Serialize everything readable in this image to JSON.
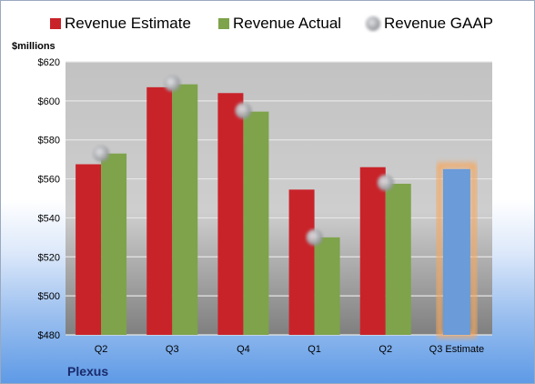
{
  "chart_data": {
    "type": "bar",
    "unit_label": "$millions",
    "company": "Plexus",
    "categories": [
      "Q2",
      "Q3",
      "Q4",
      "Q1",
      "Q2",
      "Q3 Estimate"
    ],
    "ylim": [
      480,
      620
    ],
    "yticks": [
      "$480",
      "$500",
      "$520",
      "$540",
      "$560",
      "$580",
      "$600",
      "$620"
    ],
    "ytick_values": [
      480,
      500,
      520,
      540,
      560,
      580,
      600,
      620
    ],
    "grid": true,
    "legend_position": "top",
    "series": [
      {
        "name": "Revenue Estimate",
        "color": "#c9232a",
        "values": [
          567.5,
          607,
          604,
          554.5,
          566,
          null
        ]
      },
      {
        "name": "Revenue Actual",
        "color": "#7ea34a",
        "values": [
          573,
          608.5,
          594.5,
          530,
          557.5,
          null
        ]
      },
      {
        "name": "Revenue GAAP",
        "color": "#a9abb0",
        "values": [
          573,
          609,
          595,
          530,
          558,
          null
        ]
      }
    ],
    "estimate": {
      "category": "Q3 Estimate",
      "value": 565,
      "color": "#6b9bd8",
      "glow": "#f5a860"
    }
  }
}
